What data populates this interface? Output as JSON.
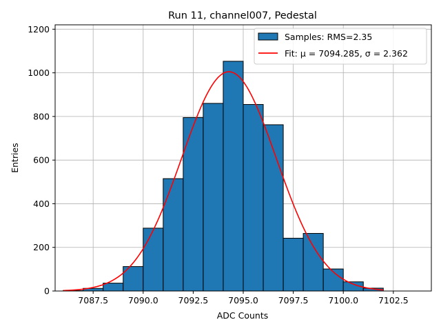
{
  "chart_data": {
    "type": "bar",
    "title": "Run 11, channel007, Pedestal",
    "xlabel": "ADC Counts",
    "ylabel": "Entries",
    "xlim": [
      7085.6,
      7104.4
    ],
    "ylim": [
      0,
      1220
    ],
    "xticks": [
      7087.5,
      7090.0,
      7092.5,
      7095.0,
      7097.5,
      7100.0,
      7102.5
    ],
    "yticks": [
      0,
      200,
      400,
      600,
      800,
      1000,
      1200
    ],
    "grid": true,
    "legend_position": "top-right",
    "series": [
      {
        "name": "Samples: RMS=2.35",
        "kind": "histogram",
        "color": "#1f77b4",
        "edgecolor": "#000000",
        "bin_edges": [
          7086,
          7087,
          7088,
          7089,
          7090,
          7091,
          7092,
          7093,
          7094,
          7095,
          7096,
          7097,
          7098,
          7099,
          7100,
          7101,
          7102
        ],
        "values": [
          2,
          12,
          36,
          112,
          288,
          515,
          795,
          860,
          1053,
          855,
          762,
          242,
          264,
          101,
          42,
          13
        ]
      },
      {
        "name": "Fit: μ = 7094.285, σ = 2.362",
        "kind": "gaussian-fit",
        "color": "#ff0000",
        "mu": 7094.285,
        "sigma": 2.362,
        "amplitude": 1005,
        "x_range": [
          7086,
          7102
        ]
      }
    ]
  }
}
